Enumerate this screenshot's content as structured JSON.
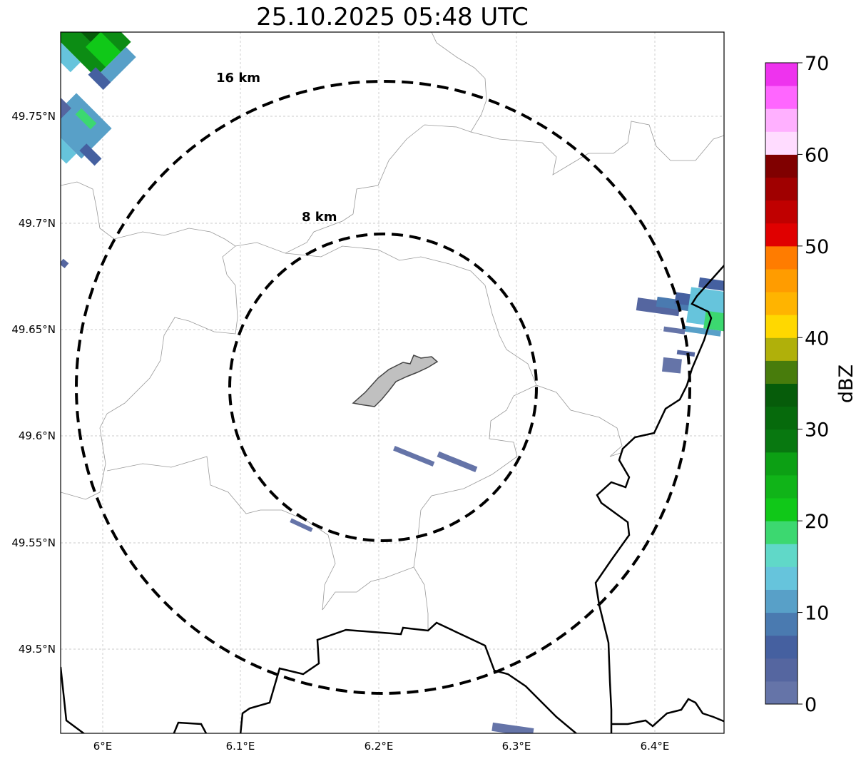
{
  "title": "25.10.2025 05:48 UTC",
  "map": {
    "lon_ticks": [
      "6°E",
      "6.1°E",
      "6.2°E",
      "6.3°E",
      "6.4°E"
    ],
    "lat_ticks": [
      "49.75°N",
      "49.7°N",
      "49.65°N",
      "49.6°N",
      "49.55°N",
      "49.5°N"
    ],
    "range_rings": [
      {
        "label": "16 km",
        "radius_km": 16
      },
      {
        "label": "8 km",
        "radius_km": 8
      }
    ]
  },
  "colorbar": {
    "label": "dBZ",
    "ticks": [
      "0",
      "10",
      "20",
      "30",
      "40",
      "50",
      "60",
      "70"
    ],
    "min": 0,
    "max": 70,
    "step": 2.5,
    "colors": [
      "#6574a8",
      "#5566a0",
      "#4560a0",
      "#4a7ab0",
      "#58a0c8",
      "#66c4dc",
      "#60d8c8",
      "#3cd870",
      "#10c818",
      "#10b418",
      "#0ca014",
      "#087810",
      "#066a0c",
      "#065c0a",
      "#487c0c",
      "#b0b00a",
      "#ffd800",
      "#ffb400",
      "#ff9c00",
      "#ff7c00",
      "#e00000",
      "#c00000",
      "#a00000",
      "#800000",
      "#ffdcff",
      "#ffb0ff",
      "#ff66ff",
      "#ee33ee"
    ]
  }
}
